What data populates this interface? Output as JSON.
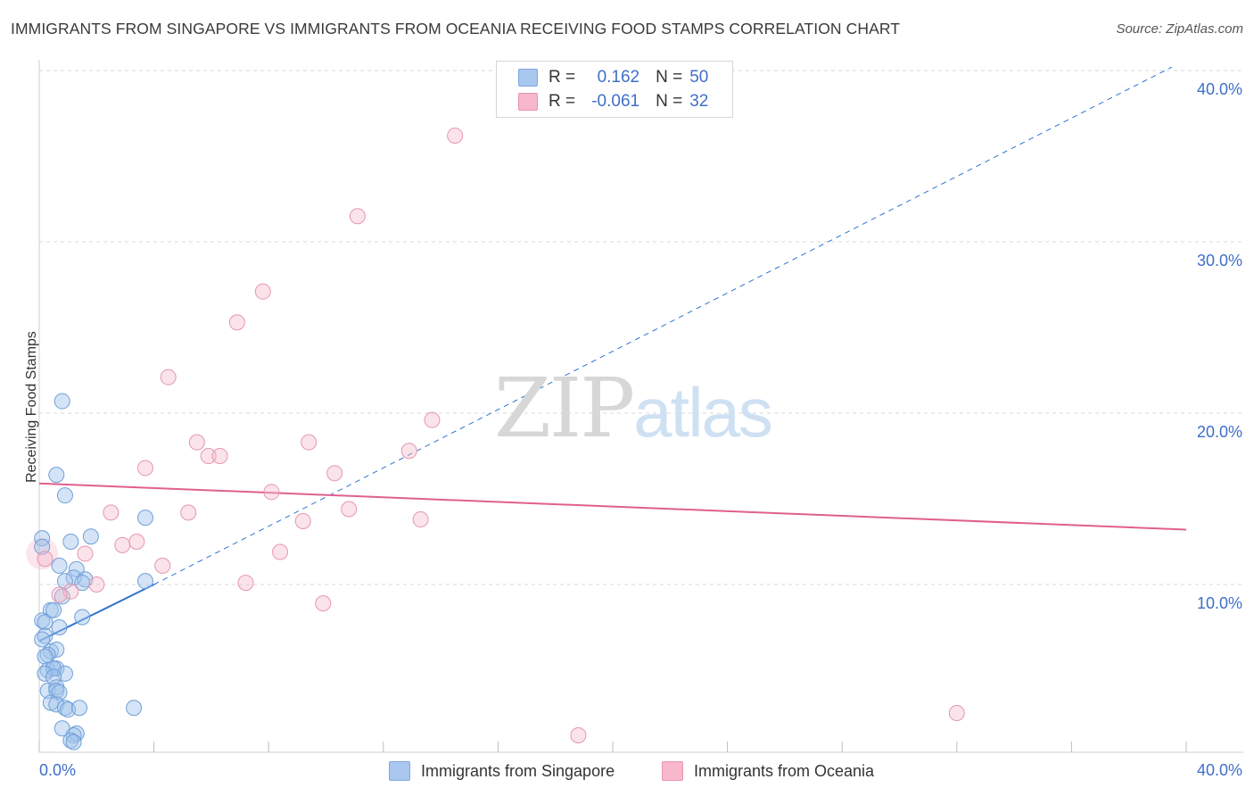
{
  "title": "IMMIGRANTS FROM SINGAPORE VS IMMIGRANTS FROM OCEANIA RECEIVING FOOD STAMPS CORRELATION CHART",
  "source": "Source: ZipAtlas.com",
  "watermark": {
    "zip": "ZIP",
    "atlas": "atlas"
  },
  "legend": {
    "rows": [
      {
        "r_label": "R =",
        "r_value": "0.162",
        "n_label": "N =",
        "n_value": "50",
        "color": "#aac8ef"
      },
      {
        "r_label": "R =",
        "r_value": "-0.061",
        "n_label": "N =",
        "n_value": "32",
        "color": "#f6b8ca"
      }
    ]
  },
  "bottom_legend": [
    {
      "label": "Immigrants from Singapore",
      "color": "#aac8ef"
    },
    {
      "label": "Immigrants from Oceania",
      "color": "#f6b8ca"
    }
  ],
  "colors": {
    "blue_fill": "rgba(160,195,235,0.45)",
    "blue_stroke": "#6f9fd8",
    "blue_line": "#2f74d0",
    "pink_fill": "rgba(246,184,202,0.40)",
    "pink_stroke": "#e597b0",
    "pink_line": "#e0608c",
    "tick_text": "#3f6fc8",
    "grid": "#d8d8d8"
  },
  "chart_data": {
    "type": "scatter",
    "title": "IMMIGRANTS FROM SINGAPORE VS IMMIGRANTS FROM OCEANIA RECEIVING FOOD STAMPS CORRELATION CHART",
    "xlabel": "",
    "ylabel": "Receiving Food Stamps",
    "xlim": [
      0,
      41.5
    ],
    "ylim": [
      0,
      42
    ],
    "x_tick_labels": [
      {
        "value": 0,
        "label": "0.0%"
      },
      {
        "value": 40,
        "label": "40.0%"
      }
    ],
    "y_tick_labels": [
      {
        "value": 10,
        "label": "10.0%"
      },
      {
        "value": 20,
        "label": "20.0%"
      },
      {
        "value": 30,
        "label": "30.0%"
      },
      {
        "value": 40,
        "label": "40.0%"
      }
    ],
    "x_minor_ticks": [
      0,
      4,
      8,
      12,
      16,
      20,
      24,
      28,
      32,
      36,
      40
    ],
    "grid": true,
    "series": [
      {
        "name": "Immigrants from Singapore",
        "color": "#aac8ef",
        "points": [
          [
            0.8,
            20.7
          ],
          [
            0.6,
            16.4
          ],
          [
            0.9,
            15.2
          ],
          [
            3.7,
            13.9
          ],
          [
            1.8,
            12.8
          ],
          [
            0.1,
            12.7
          ],
          [
            0.1,
            12.2
          ],
          [
            1.1,
            12.5
          ],
          [
            0.7,
            11.1
          ],
          [
            1.3,
            10.9
          ],
          [
            1.2,
            10.4
          ],
          [
            1.6,
            10.3
          ],
          [
            0.9,
            10.2
          ],
          [
            1.5,
            10.1
          ],
          [
            3.7,
            10.2
          ],
          [
            0.8,
            9.3
          ],
          [
            1.5,
            8.1
          ],
          [
            0.4,
            8.5
          ],
          [
            0.5,
            8.5
          ],
          [
            0.1,
            7.9
          ],
          [
            0.2,
            7.8
          ],
          [
            0.7,
            7.5
          ],
          [
            0.2,
            7.0
          ],
          [
            0.1,
            6.8
          ],
          [
            0.4,
            6.1
          ],
          [
            0.6,
            6.2
          ],
          [
            0.3,
            5.9
          ],
          [
            0.2,
            5.8
          ],
          [
            0.3,
            5.0
          ],
          [
            0.5,
            5.1
          ],
          [
            0.6,
            5.1
          ],
          [
            0.5,
            5.1
          ],
          [
            0.2,
            4.8
          ],
          [
            0.9,
            4.8
          ],
          [
            0.5,
            4.6
          ],
          [
            0.3,
            3.8
          ],
          [
            0.6,
            4.0
          ],
          [
            0.6,
            3.8
          ],
          [
            0.7,
            3.7
          ],
          [
            0.4,
            3.1
          ],
          [
            0.6,
            3.0
          ],
          [
            0.9,
            2.8
          ],
          [
            1.0,
            2.7
          ],
          [
            1.4,
            2.8
          ],
          [
            3.3,
            2.8
          ],
          [
            0.8,
            1.6
          ],
          [
            1.3,
            1.3
          ],
          [
            1.2,
            1.2
          ],
          [
            1.1,
            0.9
          ],
          [
            1.2,
            0.8
          ]
        ]
      },
      {
        "name": "Immigrants from Oceania",
        "color": "#f6b8ca",
        "points": [
          [
            14.5,
            36.2
          ],
          [
            11.1,
            31.5
          ],
          [
            7.8,
            27.1
          ],
          [
            6.9,
            25.3
          ],
          [
            4.5,
            22.1
          ],
          [
            13.7,
            19.6
          ],
          [
            5.5,
            18.3
          ],
          [
            9.4,
            18.3
          ],
          [
            12.9,
            17.8
          ],
          [
            5.9,
            17.5
          ],
          [
            6.3,
            17.5
          ],
          [
            3.7,
            16.8
          ],
          [
            10.3,
            16.5
          ],
          [
            8.1,
            15.4
          ],
          [
            2.5,
            14.2
          ],
          [
            5.2,
            14.2
          ],
          [
            10.8,
            14.4
          ],
          [
            9.2,
            13.7
          ],
          [
            13.3,
            13.8
          ],
          [
            3.4,
            12.5
          ],
          [
            2.9,
            12.3
          ],
          [
            8.4,
            11.9
          ],
          [
            1.6,
            11.8
          ],
          [
            0.2,
            11.5
          ],
          [
            4.3,
            11.1
          ],
          [
            2.0,
            10.0
          ],
          [
            7.2,
            10.1
          ],
          [
            1.1,
            9.6
          ],
          [
            0.7,
            9.4
          ],
          [
            9.9,
            8.9
          ],
          [
            32.0,
            2.5
          ],
          [
            18.8,
            1.2
          ]
        ]
      }
    ],
    "trend_lines": [
      {
        "series": "Immigrants from Singapore",
        "style": "solid",
        "x": [
          0,
          4.0
        ],
        "y": [
          6.7,
          10.0
        ]
      },
      {
        "series": "Immigrants from Singapore",
        "style": "dashed",
        "x": [
          4.0,
          39.5
        ],
        "y": [
          10.0,
          40.2
        ]
      },
      {
        "series": "Immigrants from Oceania",
        "style": "solid",
        "x": [
          0,
          40.0
        ],
        "y": [
          15.9,
          13.2
        ]
      }
    ]
  }
}
